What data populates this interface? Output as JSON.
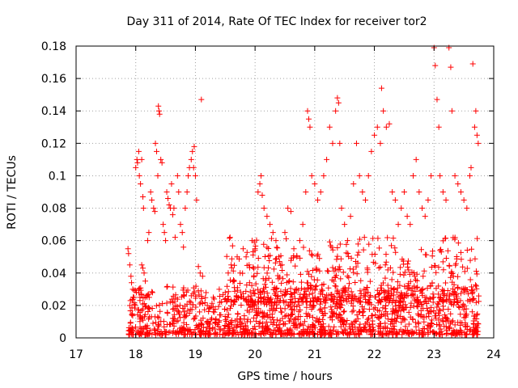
{
  "chart_data": {
    "type": "scatter",
    "title": "Day 311 of 2014, Rate Of TEC Index for receiver tor2",
    "xlabel": "GPS time / hours",
    "ylabel": "ROTI / TECUs",
    "xlim": [
      17,
      24
    ],
    "ylim": [
      0,
      0.18
    ],
    "x_ticks": [
      "17",
      "18",
      "19",
      "20",
      "21",
      "22",
      "23",
      "24"
    ],
    "y_ticks": [
      "0",
      "0.02",
      "0.04",
      "0.06",
      "0.08",
      "0.1",
      "0.12",
      "0.14",
      "0.16",
      "0.18"
    ],
    "grid": true,
    "marker": "+",
    "color": "#ff0000",
    "points": [
      [
        17.87,
        0.055
      ],
      [
        17.88,
        0.052
      ],
      [
        17.9,
        0.045
      ],
      [
        17.92,
        0.038
      ],
      [
        17.93,
        0.034
      ],
      [
        17.95,
        0.03
      ],
      [
        17.97,
        0.025
      ],
      [
        17.99,
        0.02
      ],
      [
        18.0,
        0.105
      ],
      [
        18.02,
        0.11
      ],
      [
        18.03,
        0.108
      ],
      [
        18.05,
        0.115
      ],
      [
        18.06,
        0.1
      ],
      [
        18.08,
        0.095
      ],
      [
        18.1,
        0.11
      ],
      [
        18.12,
        0.087
      ],
      [
        18.13,
        0.08
      ],
      [
        18.05,
        0.03
      ],
      [
        18.07,
        0.025
      ],
      [
        18.1,
        0.045
      ],
      [
        18.12,
        0.043
      ],
      [
        18.14,
        0.04
      ],
      [
        18.16,
        0.035
      ],
      [
        18.2,
        0.06
      ],
      [
        18.22,
        0.065
      ],
      [
        18.25,
        0.09
      ],
      [
        18.27,
        0.085
      ],
      [
        18.3,
        0.08
      ],
      [
        18.32,
        0.078
      ],
      [
        18.33,
        0.12
      ],
      [
        18.35,
        0.115
      ],
      [
        18.37,
        0.1
      ],
      [
        18.38,
        0.143
      ],
      [
        18.39,
        0.14
      ],
      [
        18.4,
        0.138
      ],
      [
        18.42,
        0.11
      ],
      [
        18.44,
        0.108
      ],
      [
        18.46,
        0.07
      ],
      [
        18.48,
        0.065
      ],
      [
        18.5,
        0.06
      ],
      [
        18.52,
        0.09
      ],
      [
        18.54,
        0.086
      ],
      [
        18.56,
        0.082
      ],
      [
        18.58,
        0.08
      ],
      [
        18.6,
        0.095
      ],
      [
        18.62,
        0.076
      ],
      [
        18.64,
        0.08
      ],
      [
        18.66,
        0.062
      ],
      [
        18.7,
        0.1
      ],
      [
        18.72,
        0.09
      ],
      [
        18.75,
        0.07
      ],
      [
        18.78,
        0.065
      ],
      [
        18.8,
        0.056
      ],
      [
        18.83,
        0.08
      ],
      [
        18.86,
        0.09
      ],
      [
        18.88,
        0.1
      ],
      [
        18.9,
        0.105
      ],
      [
        18.93,
        0.11
      ],
      [
        18.95,
        0.115
      ],
      [
        18.97,
        0.105
      ],
      [
        18.98,
        0.118
      ],
      [
        19.0,
        0.1
      ],
      [
        19.02,
        0.085
      ],
      [
        19.05,
        0.044
      ],
      [
        19.08,
        0.04
      ],
      [
        19.1,
        0.147
      ],
      [
        19.12,
        0.038
      ],
      [
        19.2,
        0.02
      ],
      [
        19.3,
        0.025
      ],
      [
        19.4,
        0.03
      ],
      [
        19.5,
        0.028
      ],
      [
        19.55,
        0.04
      ],
      [
        19.6,
        0.045
      ],
      [
        19.65,
        0.035
      ],
      [
        19.7,
        0.05
      ],
      [
        19.75,
        0.04
      ],
      [
        19.8,
        0.055
      ],
      [
        19.85,
        0.05
      ],
      [
        19.9,
        0.045
      ],
      [
        19.95,
        0.06
      ],
      [
        20.0,
        0.055
      ],
      [
        20.05,
        0.09
      ],
      [
        20.08,
        0.095
      ],
      [
        20.1,
        0.1
      ],
      [
        20.12,
        0.088
      ],
      [
        20.15,
        0.08
      ],
      [
        20.2,
        0.075
      ],
      [
        20.25,
        0.07
      ],
      [
        20.3,
        0.065
      ],
      [
        20.35,
        0.06
      ],
      [
        20.4,
        0.05
      ],
      [
        20.45,
        0.045
      ],
      [
        20.5,
        0.065
      ],
      [
        20.55,
        0.08
      ],
      [
        20.6,
        0.078
      ],
      [
        20.65,
        0.055
      ],
      [
        20.7,
        0.05
      ],
      [
        20.75,
        0.06
      ],
      [
        20.8,
        0.07
      ],
      [
        20.85,
        0.09
      ],
      [
        20.88,
        0.14
      ],
      [
        20.9,
        0.135
      ],
      [
        20.92,
        0.13
      ],
      [
        20.95,
        0.1
      ],
      [
        21.0,
        0.095
      ],
      [
        21.05,
        0.085
      ],
      [
        21.1,
        0.09
      ],
      [
        21.15,
        0.1
      ],
      [
        21.2,
        0.11
      ],
      [
        21.25,
        0.13
      ],
      [
        21.3,
        0.12
      ],
      [
        21.35,
        0.14
      ],
      [
        21.38,
        0.148
      ],
      [
        21.4,
        0.145
      ],
      [
        21.42,
        0.12
      ],
      [
        21.45,
        0.08
      ],
      [
        21.5,
        0.07
      ],
      [
        21.55,
        0.06
      ],
      [
        21.6,
        0.075
      ],
      [
        21.65,
        0.095
      ],
      [
        21.7,
        0.12
      ],
      [
        21.75,
        0.1
      ],
      [
        21.8,
        0.09
      ],
      [
        21.85,
        0.085
      ],
      [
        21.9,
        0.1
      ],
      [
        21.95,
        0.115
      ],
      [
        22.0,
        0.125
      ],
      [
        22.05,
        0.13
      ],
      [
        22.1,
        0.12
      ],
      [
        22.12,
        0.154
      ],
      [
        22.15,
        0.14
      ],
      [
        22.2,
        0.13
      ],
      [
        22.25,
        0.132
      ],
      [
        22.3,
        0.09
      ],
      [
        22.35,
        0.085
      ],
      [
        22.4,
        0.07
      ],
      [
        22.45,
        0.08
      ],
      [
        22.5,
        0.09
      ],
      [
        22.55,
        0.075
      ],
      [
        22.6,
        0.07
      ],
      [
        22.65,
        0.1
      ],
      [
        22.7,
        0.11
      ],
      [
        22.75,
        0.09
      ],
      [
        22.8,
        0.08
      ],
      [
        22.85,
        0.075
      ],
      [
        22.9,
        0.085
      ],
      [
        22.95,
        0.1
      ],
      [
        23.0,
        0.179
      ],
      [
        23.02,
        0.168
      ],
      [
        23.05,
        0.147
      ],
      [
        23.08,
        0.13
      ],
      [
        23.1,
        0.1
      ],
      [
        23.15,
        0.09
      ],
      [
        23.2,
        0.085
      ],
      [
        23.25,
        0.179
      ],
      [
        23.28,
        0.167
      ],
      [
        23.3,
        0.14
      ],
      [
        23.35,
        0.1
      ],
      [
        23.4,
        0.095
      ],
      [
        23.45,
        0.09
      ],
      [
        23.5,
        0.085
      ],
      [
        23.55,
        0.08
      ],
      [
        23.6,
        0.1
      ],
      [
        23.62,
        0.105
      ],
      [
        23.65,
        0.169
      ],
      [
        23.68,
        0.13
      ],
      [
        23.7,
        0.14
      ],
      [
        23.72,
        0.125
      ],
      [
        23.74,
        0.12
      ]
    ],
    "dense_bands": [
      {
        "x_from": 17.88,
        "x_to": 23.75,
        "y_from": 0.0,
        "y_to": 0.03,
        "count": 1400
      },
      {
        "x_from": 19.5,
        "x_to": 23.75,
        "y_from": 0.02,
        "y_to": 0.06,
        "count": 500
      }
    ]
  }
}
